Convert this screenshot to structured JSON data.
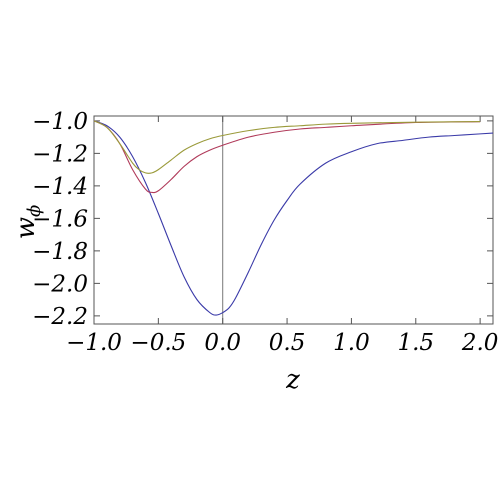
{
  "chart_data": {
    "type": "line",
    "xlabel": "z",
    "ylabel": "w",
    "ylabel_sub": "ϕ",
    "xlim": [
      -1.0,
      2.1
    ],
    "ylim": [
      -2.25,
      -0.97
    ],
    "x_ticks": [
      -1.0,
      -0.5,
      0.0,
      0.5,
      1.0,
      1.5,
      2.0
    ],
    "x_tick_labels": [
      "−1.0",
      "−0.5",
      "0.0",
      "0.5",
      "1.0",
      "1.5",
      "2.0"
    ],
    "y_ticks": [
      -1.0,
      -1.2,
      -1.4,
      -1.6,
      -1.8,
      -2.0,
      -2.2
    ],
    "y_tick_labels": [
      "−1.0",
      "−1.2",
      "−1.4",
      "−1.6",
      "−1.8",
      "−2.0",
      "−2.2"
    ],
    "vertical_line_at_x": 0.0,
    "grid": false,
    "series": [
      {
        "color": "#3a3aa8",
        "x": [
          -1.0,
          -0.9,
          -0.8,
          -0.7,
          -0.6,
          -0.5,
          -0.4,
          -0.3,
          -0.2,
          -0.1,
          -0.05,
          0.0,
          0.05,
          0.1,
          0.2,
          0.3,
          0.4,
          0.5,
          0.6,
          0.8,
          1.0,
          1.2,
          1.4,
          1.6,
          1.8,
          2.0,
          2.1
        ],
        "y": [
          -1.0,
          -1.03,
          -1.1,
          -1.22,
          -1.38,
          -1.57,
          -1.77,
          -1.96,
          -2.1,
          -2.18,
          -2.195,
          -2.18,
          -2.15,
          -2.09,
          -1.93,
          -1.76,
          -1.61,
          -1.49,
          -1.39,
          -1.26,
          -1.19,
          -1.14,
          -1.12,
          -1.1,
          -1.09,
          -1.08,
          -1.075
        ]
      },
      {
        "color": "#b03a5a",
        "x": [
          -1.0,
          -0.9,
          -0.8,
          -0.7,
          -0.6,
          -0.55,
          -0.5,
          -0.4,
          -0.3,
          -0.2,
          -0.1,
          0.0,
          0.2,
          0.4,
          0.6,
          0.8,
          1.0,
          1.5,
          2.0
        ],
        "y": [
          -1.0,
          -1.04,
          -1.14,
          -1.3,
          -1.42,
          -1.44,
          -1.43,
          -1.36,
          -1.28,
          -1.22,
          -1.18,
          -1.15,
          -1.1,
          -1.07,
          -1.05,
          -1.04,
          -1.03,
          -1.01,
          -1.005
        ]
      },
      {
        "color": "#9a9a3a",
        "x": [
          -1.0,
          -0.9,
          -0.8,
          -0.7,
          -0.65,
          -0.6,
          -0.55,
          -0.5,
          -0.4,
          -0.3,
          -0.2,
          -0.1,
          0.0,
          0.2,
          0.4,
          0.6,
          0.8,
          1.0,
          1.5,
          2.0
        ],
        "y": [
          -1.0,
          -1.04,
          -1.14,
          -1.26,
          -1.3,
          -1.32,
          -1.32,
          -1.3,
          -1.24,
          -1.18,
          -1.14,
          -1.11,
          -1.09,
          -1.06,
          -1.04,
          -1.03,
          -1.02,
          -1.015,
          -1.008,
          -1.004
        ]
      }
    ]
  }
}
